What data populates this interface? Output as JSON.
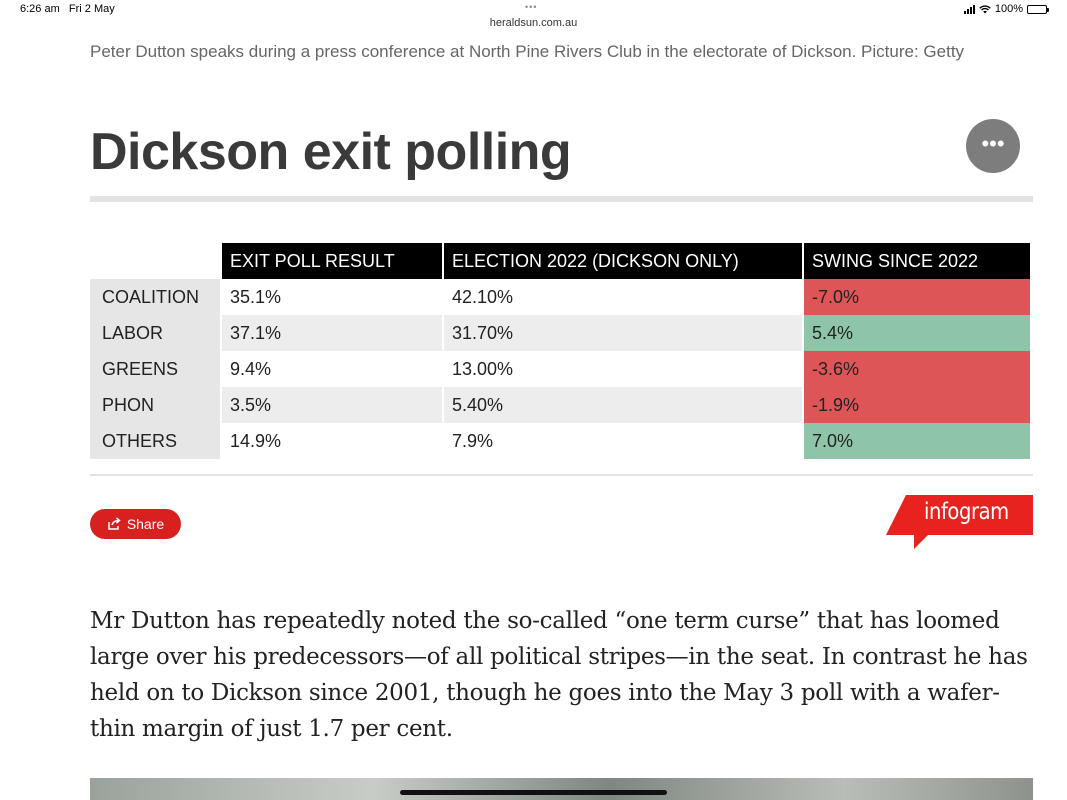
{
  "status_bar": {
    "time": "6:26 am",
    "date": "Fri 2 May",
    "battery": "100%",
    "url": "heraldsun.com.au",
    "tab_dots": "•••"
  },
  "caption": "Peter Dutton speaks during a press conference at North Pine Rivers Club in the electorate of Dickson. Picture: Getty",
  "embed": {
    "title": "Dickson exit polling",
    "more_icon": "•••",
    "table": {
      "headers": [
        "EXIT POLL RESULT",
        "ELECTION 2022 (DICKSON ONLY)",
        "SWING SINCE 2022"
      ],
      "rows": [
        {
          "party": "COALITION",
          "exit_poll": "35.1%",
          "election_2022": "42.10%",
          "swing": "-7.0%"
        },
        {
          "party": "LABOR",
          "exit_poll": "37.1%",
          "election_2022": "31.70%",
          "swing": "5.4%"
        },
        {
          "party": "GREENS",
          "exit_poll": "9.4%",
          "election_2022": "13.00%",
          "swing": "-3.6%"
        },
        {
          "party": "PHON",
          "exit_poll": "3.5%",
          "election_2022": "5.40%",
          "swing": "-1.9%"
        },
        {
          "party": "OTHERS",
          "exit_poll": "14.9%",
          "election_2022": "7.9%",
          "swing": "7.0%"
        }
      ]
    },
    "share_label": "Share",
    "infogram_label": "infogram",
    "colors": {
      "negative_swing": "#de5558",
      "positive_swing": "#8ec5a8",
      "brand_red": "#d8211f"
    }
  },
  "article": {
    "paragraph": "Mr Dutton has repeatedly noted the so-called “one term curse” that has loomed large over his predecessors—of all political stripes—in the seat. In contrast he has held on to Dickson since 2001, though he goes into the May 3 poll with a wafer-thin margin of just 1.7 per cent."
  }
}
